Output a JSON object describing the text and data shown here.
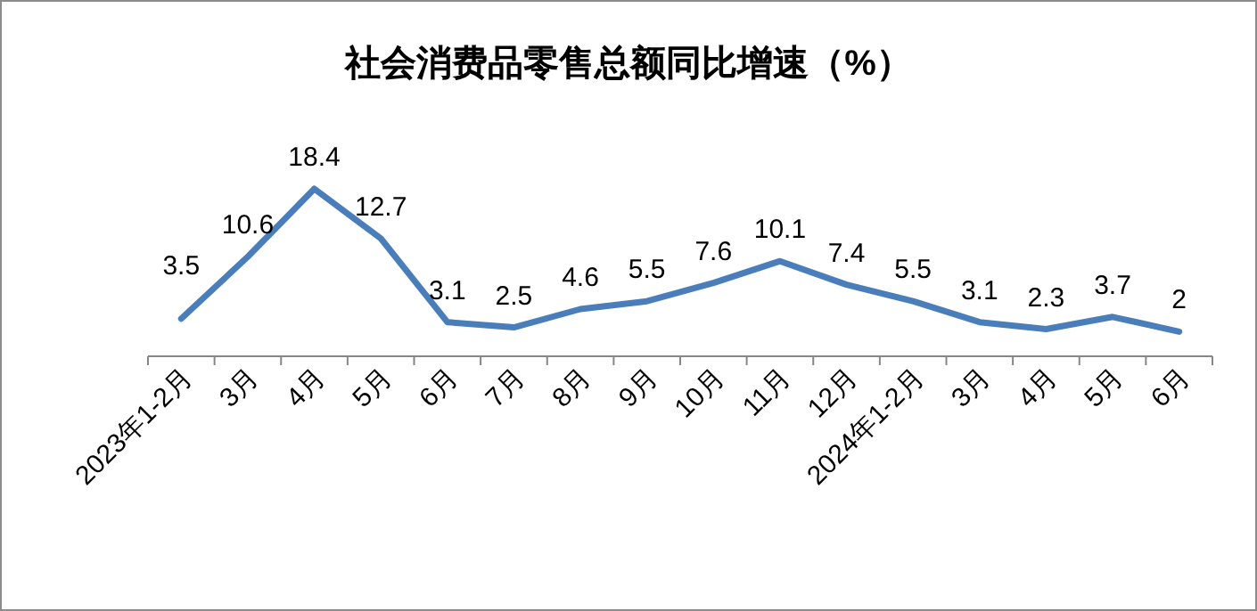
{
  "chart_data": {
    "type": "line",
    "title": "社会消费品零售总额同比增速（%）",
    "categories": [
      "2023年1-2月",
      "3月",
      "4月",
      "5月",
      "6月",
      "7月",
      "8月",
      "9月",
      "10月",
      "11月",
      "12月",
      "2024年1-2月",
      "3月",
      "4月",
      "5月",
      "6月"
    ],
    "series": [
      {
        "color": "#4a7ebb",
        "values": [
          3.5,
          10.6,
          18.4,
          12.7,
          3.1,
          2.5,
          4.6,
          5.5,
          7.6,
          10.1,
          7.4,
          5.5,
          3.1,
          2.3,
          3.7,
          2
        ]
      }
    ],
    "data_labels": true,
    "marker": "none",
    "line_style": "solid"
  }
}
